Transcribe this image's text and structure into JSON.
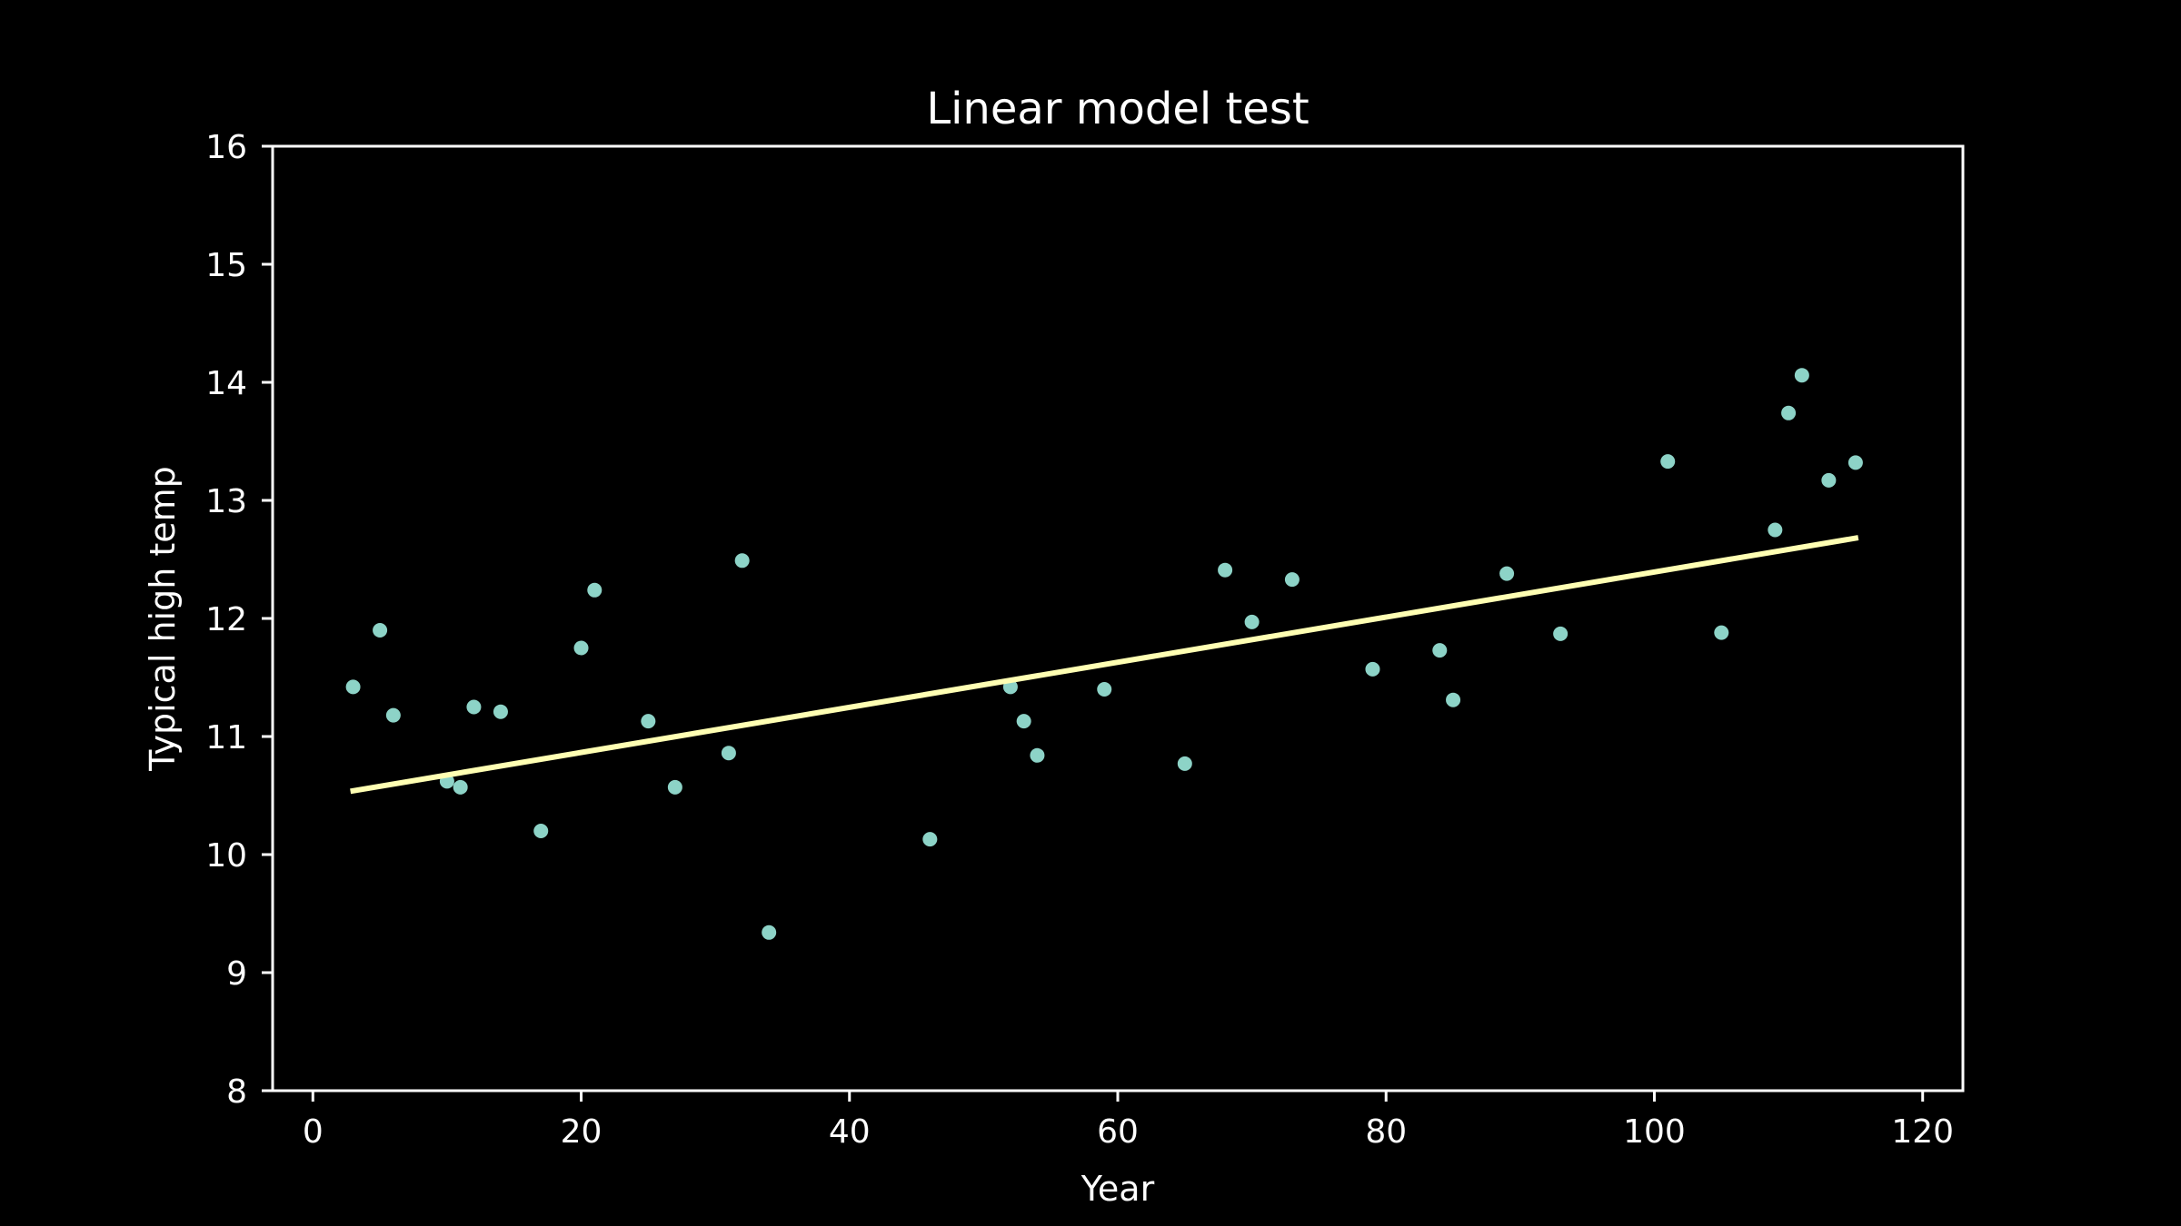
{
  "chart_data": {
    "type": "scatter",
    "title": "Linear model test",
    "xlabel": "Year",
    "ylabel": "Typical high temp",
    "xlim": [
      -3,
      123
    ],
    "ylim": [
      8,
      16
    ],
    "xticks": [
      0,
      20,
      40,
      60,
      80,
      100,
      120
    ],
    "yticks": [
      8,
      9,
      10,
      11,
      12,
      13,
      14,
      15,
      16
    ],
    "grid": false,
    "colors": {
      "background": "#000000",
      "axes": "#ffffff",
      "text": "#ffffff",
      "points": "#8dd3c7",
      "fit_line": "#ffffb3"
    },
    "series": [
      {
        "kind": "scatter",
        "points": [
          [
            3,
            11.42
          ],
          [
            5,
            11.9
          ],
          [
            6,
            11.18
          ],
          [
            10,
            10.62
          ],
          [
            11,
            10.57
          ],
          [
            12,
            11.25
          ],
          [
            14,
            11.21
          ],
          [
            17,
            10.2
          ],
          [
            20,
            11.75
          ],
          [
            21,
            12.24
          ],
          [
            25,
            11.13
          ],
          [
            27,
            10.57
          ],
          [
            31,
            10.86
          ],
          [
            32,
            12.49
          ],
          [
            34,
            9.34
          ],
          [
            46,
            10.13
          ],
          [
            52,
            11.42
          ],
          [
            53,
            11.13
          ],
          [
            54,
            10.84
          ],
          [
            59,
            11.4
          ],
          [
            65,
            10.77
          ],
          [
            68,
            12.41
          ],
          [
            70,
            11.97
          ],
          [
            73,
            12.33
          ],
          [
            79,
            11.57
          ],
          [
            84,
            11.73
          ],
          [
            85,
            11.31
          ],
          [
            89,
            12.38
          ],
          [
            93,
            11.87
          ],
          [
            101,
            13.33
          ],
          [
            105,
            11.88
          ],
          [
            109,
            12.75
          ],
          [
            110,
            13.74
          ],
          [
            111,
            14.06
          ],
          [
            113,
            13.17
          ],
          [
            115,
            13.32
          ]
        ]
      },
      {
        "kind": "line",
        "points": [
          [
            3,
            10.54
          ],
          [
            115,
            12.68
          ]
        ]
      }
    ]
  }
}
